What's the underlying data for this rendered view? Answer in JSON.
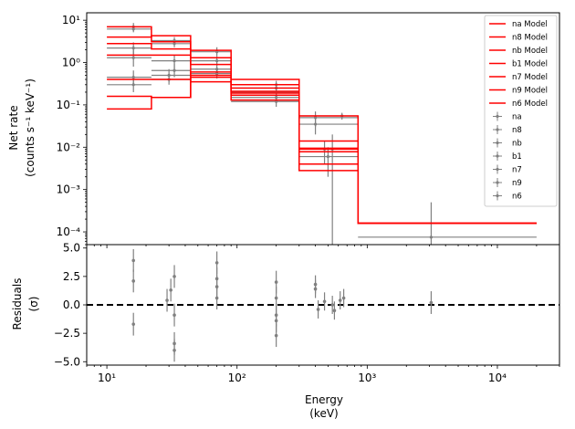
{
  "chart_data": [
    {
      "type": "line",
      "panel": "spectrum",
      "ylabel_line1": "Net rate",
      "ylabel_line2": "(counts s⁻¹ keV⁻¹)",
      "xscale": "log",
      "yscale": "log",
      "xlim": [
        7,
        30000
      ],
      "ylim": [
        5e-05,
        15
      ],
      "legend_position": "top-right",
      "x_tick_labels": [],
      "y_ticks": [
        {
          "value": 0.0001,
          "label": "10⁻⁴"
        },
        {
          "value": 0.001,
          "label": "10⁻³"
        },
        {
          "value": 0.01,
          "label": "10⁻²"
        },
        {
          "value": 0.1,
          "label": "10⁻¹"
        },
        {
          "value": 1,
          "label": "10⁰"
        },
        {
          "value": 10,
          "label": "10¹"
        }
      ],
      "bin_edges": [
        10,
        22,
        44,
        90,
        300,
        850,
        20000
      ],
      "model_series": [
        {
          "name": "na Model",
          "color": "#ff0000",
          "values": [
            7.0,
            3.1,
            1.3,
            0.17,
            0.0095,
            0.00016
          ]
        },
        {
          "name": "n8 Model",
          "color": "#ff0000",
          "values": [
            4.0,
            4.3,
            1.95,
            0.4,
            0.055,
            0.00016
          ]
        },
        {
          "name": "nb Model",
          "color": "#ff0000",
          "values": [
            2.8,
            2.1,
            0.9,
            0.3,
            0.014,
            0.00016
          ]
        },
        {
          "name": "b1 Model",
          "color": "#ff0000",
          "values": [
            0.4,
            0.4,
            0.6,
            0.25,
            0.009,
            0.00016
          ]
        },
        {
          "name": "n7 Model",
          "color": "#ff0000",
          "values": [
            0.16,
            0.15,
            0.5,
            0.21,
            0.004,
            0.00016
          ]
        },
        {
          "name": "n9 Model",
          "color": "#ff0000",
          "values": [
            0.08,
            0.15,
            0.45,
            0.19,
            0.0028,
            0.00016
          ]
        },
        {
          "name": "n6 Model",
          "color": "#ff0000",
          "values": [
            1.5,
            1.5,
            0.35,
            0.13,
            0.0078,
            0.00016
          ]
        }
      ],
      "data_series_names": [
        "na",
        "n8",
        "nb",
        "b1",
        "n7",
        "n9",
        "n6"
      ],
      "data_points": [
        {
          "x": 16,
          "xlo": 10,
          "xhi": 22,
          "y": 7.0,
          "ylo": 5.6,
          "yhi": 8.6
        },
        {
          "x": 16,
          "xlo": 10,
          "xhi": 22,
          "y": 6.2,
          "ylo": 5.2,
          "yhi": 7.2
        },
        {
          "x": 16,
          "xlo": 10,
          "xhi": 22,
          "y": 2.2,
          "ylo": 1.5,
          "yhi": 3.0
        },
        {
          "x": 16,
          "xlo": 10,
          "xhi": 22,
          "y": 1.3,
          "ylo": 0.8,
          "yhi": 2.0
        },
        {
          "x": 16,
          "xlo": 10,
          "xhi": 22,
          "y": 0.45,
          "ylo": 0.3,
          "yhi": 0.65
        },
        {
          "x": 16,
          "xlo": 10,
          "xhi": 22,
          "y": 0.3,
          "ylo": 0.2,
          "yhi": 0.42
        },
        {
          "x": 30,
          "xlo": 22,
          "xhi": 44,
          "y": 0.5,
          "ylo": 0.35,
          "yhi": 0.7
        },
        {
          "x": 30,
          "xlo": 22,
          "xhi": 44,
          "y": 0.4,
          "ylo": 0.3,
          "yhi": 0.55
        },
        {
          "x": 33,
          "xlo": 22,
          "xhi": 44,
          "y": 3.3,
          "ylo": 2.7,
          "yhi": 4.0
        },
        {
          "x": 33,
          "xlo": 22,
          "xhi": 44,
          "y": 2.8,
          "ylo": 2.3,
          "yhi": 3.4
        },
        {
          "x": 33,
          "xlo": 22,
          "xhi": 44,
          "y": 1.1,
          "ylo": 0.7,
          "yhi": 1.5
        },
        {
          "x": 33,
          "xlo": 22,
          "xhi": 44,
          "y": 0.65,
          "ylo": 0.45,
          "yhi": 0.95
        },
        {
          "x": 70,
          "xlo": 44,
          "xhi": 90,
          "y": 1.8,
          "ylo": 1.4,
          "yhi": 2.3
        },
        {
          "x": 70,
          "xlo": 44,
          "xhi": 90,
          "y": 1.1,
          "ylo": 0.85,
          "yhi": 1.4
        },
        {
          "x": 70,
          "xlo": 44,
          "xhi": 90,
          "y": 0.7,
          "ylo": 0.5,
          "yhi": 0.95
        },
        {
          "x": 70,
          "xlo": 44,
          "xhi": 90,
          "y": 0.55,
          "ylo": 0.42,
          "yhi": 0.7
        },
        {
          "x": 200,
          "xlo": 90,
          "xhi": 300,
          "y": 0.3,
          "ylo": 0.25,
          "yhi": 0.37
        },
        {
          "x": 200,
          "xlo": 90,
          "xhi": 300,
          "y": 0.25,
          "ylo": 0.2,
          "yhi": 0.3
        },
        {
          "x": 200,
          "xlo": 90,
          "xhi": 300,
          "y": 0.2,
          "ylo": 0.16,
          "yhi": 0.24
        },
        {
          "x": 200,
          "xlo": 90,
          "xhi": 300,
          "y": 0.15,
          "ylo": 0.12,
          "yhi": 0.19
        },
        {
          "x": 200,
          "xlo": 90,
          "xhi": 300,
          "y": 0.12,
          "ylo": 0.09,
          "yhi": 0.15
        },
        {
          "x": 400,
          "xlo": 300,
          "xhi": 850,
          "y": 0.05,
          "ylo": 0.03,
          "yhi": 0.07
        },
        {
          "x": 400,
          "xlo": 300,
          "xhi": 850,
          "y": 0.035,
          "ylo": 0.02,
          "yhi": 0.05
        },
        {
          "x": 470,
          "xlo": 300,
          "xhi": 850,
          "y": 0.009,
          "ylo": 0.004,
          "yhi": 0.014
        },
        {
          "x": 500,
          "xlo": 300,
          "xhi": 850,
          "y": 0.006,
          "ylo": 0.002,
          "yhi": 0.01
        },
        {
          "x": 540,
          "xlo": 300,
          "xhi": 850,
          "y": 0.009,
          "ylo": 5e-05,
          "yhi": 0.02
        },
        {
          "x": 640,
          "xlo": 300,
          "xhi": 850,
          "y": 0.055,
          "ylo": 0.045,
          "yhi": 0.065
        },
        {
          "x": 3100,
          "xlo": 850,
          "xhi": 20000,
          "y": 7.5e-05,
          "ylo": 5e-05,
          "yhi": 0.0005
        }
      ]
    },
    {
      "type": "scatter",
      "panel": "residuals",
      "xlabel_line1": "Energy",
      "xlabel_line2": "(keV)",
      "ylabel_line1": "Residuals",
      "ylabel_line2": "(σ)",
      "xscale": "log",
      "xlim": [
        7,
        30000
      ],
      "ylim": [
        -5.3,
        5.3
      ],
      "reference_line_y": 0,
      "x_ticks": [
        {
          "value": 10,
          "label": "10¹"
        },
        {
          "value": 100,
          "label": "10²"
        },
        {
          "value": 1000,
          "label": "10³"
        },
        {
          "value": 10000,
          "label": "10⁴"
        }
      ],
      "y_ticks": [
        {
          "value": 5,
          "label": "5.0"
        },
        {
          "value": 2.5,
          "label": "2.5"
        },
        {
          "value": 0,
          "label": "0.0"
        },
        {
          "value": -2.5,
          "label": "−2.5"
        },
        {
          "value": -5,
          "label": "−5.0"
        }
      ],
      "points": [
        {
          "x": 16,
          "y": 3.9,
          "err": 1.0
        },
        {
          "x": 16,
          "y": 2.1,
          "err": 1.0
        },
        {
          "x": 16,
          "y": -1.7,
          "err": 1.0
        },
        {
          "x": 29,
          "y": 0.4,
          "err": 1.0
        },
        {
          "x": 31,
          "y": 1.3,
          "err": 1.0
        },
        {
          "x": 33,
          "y": 2.5,
          "err": 1.0
        },
        {
          "x": 33,
          "y": -0.9,
          "err": 1.0
        },
        {
          "x": 33,
          "y": -3.4,
          "err": 1.0
        },
        {
          "x": 33,
          "y": -4.0,
          "err": 1.0
        },
        {
          "x": 70,
          "y": 3.7,
          "err": 1.0
        },
        {
          "x": 70,
          "y": 2.3,
          "err": 1.0
        },
        {
          "x": 70,
          "y": 1.6,
          "err": 1.0
        },
        {
          "x": 70,
          "y": 0.6,
          "err": 1.0
        },
        {
          "x": 200,
          "y": 2.0,
          "err": 1.0
        },
        {
          "x": 200,
          "y": 0.6,
          "err": 1.0
        },
        {
          "x": 200,
          "y": -0.9,
          "err": 1.0
        },
        {
          "x": 200,
          "y": -1.4,
          "err": 1.0
        },
        {
          "x": 200,
          "y": -2.7,
          "err": 1.0
        },
        {
          "x": 400,
          "y": 1.8,
          "err": 0.8
        },
        {
          "x": 400,
          "y": 1.4,
          "err": 0.8
        },
        {
          "x": 420,
          "y": -0.4,
          "err": 0.8
        },
        {
          "x": 470,
          "y": 0.3,
          "err": 0.8
        },
        {
          "x": 540,
          "y": 0.0,
          "err": 0.8
        },
        {
          "x": 560,
          "y": -0.5,
          "err": 0.8
        },
        {
          "x": 620,
          "y": 0.4,
          "err": 0.8
        },
        {
          "x": 660,
          "y": 0.6,
          "err": 0.8
        },
        {
          "x": 3100,
          "y": 0.2,
          "err": 1.0
        }
      ]
    }
  ],
  "colors": {
    "model": "#ff0000",
    "data": "#808080",
    "reference": "#000000"
  }
}
